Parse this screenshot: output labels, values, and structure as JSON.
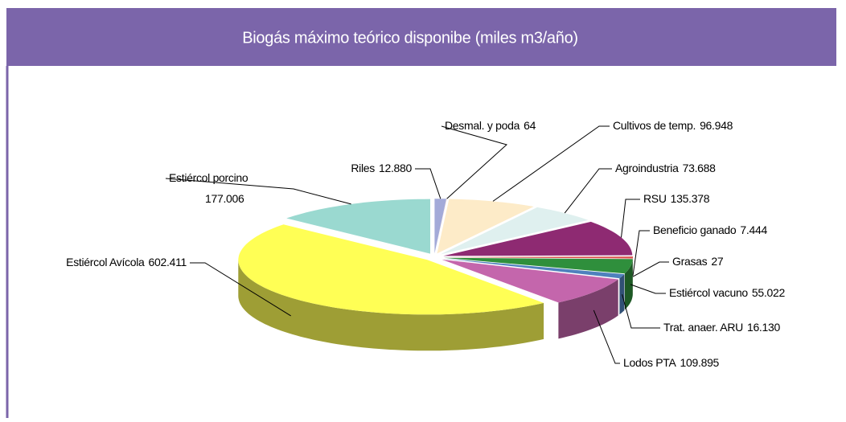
{
  "chart_data": {
    "type": "pie3d",
    "title": "Biogás máximo teórico disponibe (miles m3/año)",
    "categories": [
      "Riles",
      "Desmal. y poda",
      "Cultivos de temp.",
      "Agroindustria",
      "RSU",
      "Beneficio ganado",
      "Grasas",
      "Estiércol vacuno",
      "Trat. anaer. ARU",
      "Lodos PTA",
      "Estiércol Avícola",
      "Estiércol porcino"
    ],
    "values": [
      12880,
      64,
      96948,
      73688,
      135378,
      7444,
      27,
      55022,
      16130,
      109895,
      602411,
      177006
    ],
    "value_labels": [
      "12.880",
      "64",
      "96.948",
      "73.688",
      "135.378",
      "7.444",
      "27",
      "55.022",
      "16.130",
      "109.895",
      "602.411",
      "177.006"
    ],
    "colors": [
      "#a3aad8",
      "#c0504d",
      "#fdebc8",
      "#dff0ef",
      "#8e2a72",
      "#d9534f",
      "#c6d9f1",
      "#2f8f3c",
      "#4f81bd",
      "#c466ac",
      "#ffff55",
      "#9ad9d0"
    ]
  }
}
